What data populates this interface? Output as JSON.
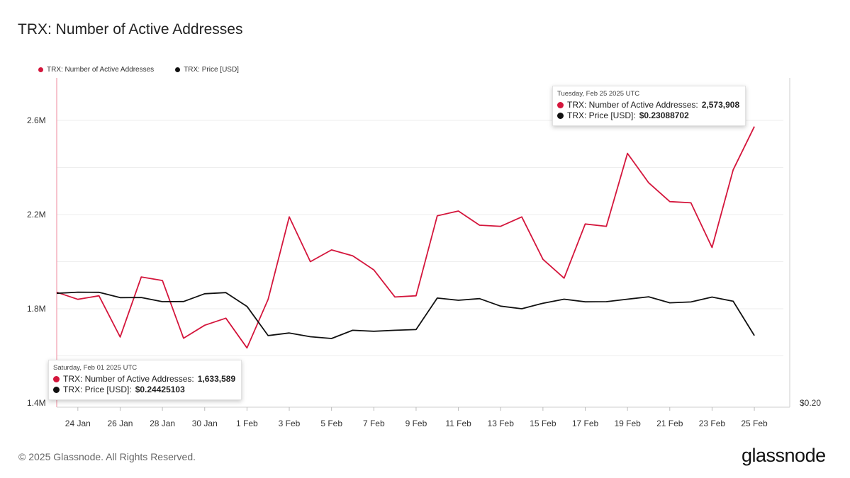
{
  "title": "TRX: Number of Active Addresses",
  "footer": "© 2025 Glassnode. All Rights Reserved.",
  "brand": "glassnode",
  "colors": {
    "addresses": "#d4163c",
    "price": "#111111"
  },
  "tooltip_left": {
    "date": "Saturday, Feb 01 2025 UTC",
    "addr_label": "TRX: Number of Active Addresses:",
    "addr_value": "1,633,589",
    "price_label": "TRX: Price [USD]:",
    "price_value": "$0.24425103"
  },
  "tooltip_right": {
    "date": "Tuesday, Feb 25 2025 UTC",
    "addr_label": "TRX: Number of Active Addresses:",
    "addr_value": "2,573,908",
    "price_label": "TRX: Price [USD]:",
    "price_value": "$0.23088702"
  },
  "chart_data": {
    "type": "line",
    "title": "TRX: Number of Active Addresses",
    "legend_position": "top-left",
    "grid": true,
    "x": [
      "2025-01-23",
      "2025-01-24",
      "2025-01-25",
      "2025-01-26",
      "2025-01-27",
      "2025-01-28",
      "2025-01-29",
      "2025-01-30",
      "2025-01-31",
      "2025-02-01",
      "2025-02-02",
      "2025-02-03",
      "2025-02-04",
      "2025-02-05",
      "2025-02-06",
      "2025-02-07",
      "2025-02-08",
      "2025-02-09",
      "2025-02-10",
      "2025-02-11",
      "2025-02-12",
      "2025-02-13",
      "2025-02-14",
      "2025-02-15",
      "2025-02-16",
      "2025-02-17",
      "2025-02-18",
      "2025-02-19",
      "2025-02-20",
      "2025-02-21",
      "2025-02-22",
      "2025-02-23",
      "2025-02-24",
      "2025-02-25"
    ],
    "x_ticks": [
      "24 Jan",
      "26 Jan",
      "28 Jan",
      "30 Jan",
      "1 Feb",
      "3 Feb",
      "5 Feb",
      "7 Feb",
      "9 Feb",
      "11 Feb",
      "13 Feb",
      "15 Feb",
      "17 Feb",
      "19 Feb",
      "21 Feb",
      "23 Feb",
      "25 Feb"
    ],
    "y_left": {
      "ticks": [
        "1.4M",
        "1.8M",
        "2.2M",
        "2.6M"
      ],
      "ylim": [
        1400000,
        2800000
      ]
    },
    "y_right": {
      "ticks": [
        "$0.20"
      ]
    },
    "series": [
      {
        "name": "TRX: Number of Active Addresses",
        "axis": "left",
        "values": [
          1870000,
          1840000,
          1855000,
          1680000,
          1935000,
          1920000,
          1675000,
          1730000,
          1760000,
          1633589,
          1840000,
          2190000,
          2000000,
          2050000,
          2025000,
          1965000,
          1850000,
          1855000,
          2195000,
          2215000,
          2155000,
          2150000,
          2190000,
          2010000,
          1930000,
          2160000,
          2150000,
          2460000,
          2335000,
          2255000,
          2250000,
          2060000,
          2390000,
          2573908
        ]
      },
      {
        "name": "TRX: Price [USD]",
        "axis": "right",
        "values": [
          0.25026,
          0.25079,
          0.25072,
          0.24828,
          0.24835,
          0.24644,
          0.2465,
          0.25006,
          0.25059,
          0.24425,
          0.23088,
          0.23207,
          0.23035,
          0.22956,
          0.23332,
          0.23286,
          0.23332,
          0.23365,
          0.24808,
          0.24709,
          0.24781,
          0.24437,
          0.24319,
          0.2457,
          0.24755,
          0.24636,
          0.24643,
          0.24755,
          0.24867,
          0.2459,
          0.2463,
          0.24854,
          0.24663,
          0.23089
        ]
      }
    ]
  }
}
